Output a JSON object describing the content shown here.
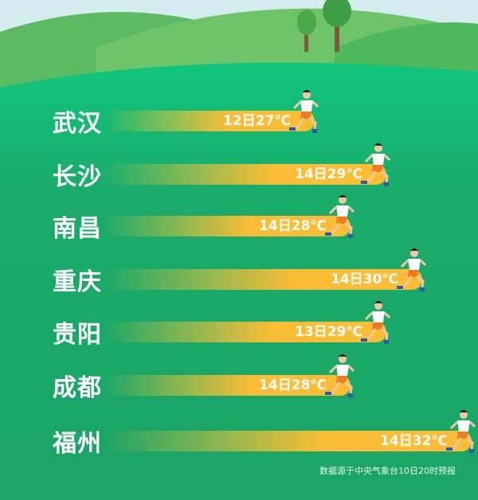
{
  "chart_data": {
    "type": "bar",
    "orientation": "horizontal",
    "categories": [
      "武汉",
      "长沙",
      "南昌",
      "重庆",
      "贵阳",
      "成都",
      "福州"
    ],
    "labels": [
      "12日27℃",
      "14日29℃",
      "14日28℃",
      "14日30℃",
      "13日29℃",
      "14日28℃",
      "14日32℃"
    ],
    "values": [
      27,
      29,
      28,
      30,
      29,
      28,
      32
    ],
    "unit": "℃",
    "xlim": [
      27,
      32
    ],
    "grid": false
  },
  "source": "数据源于中央气象台10日20时预报",
  "colors": {
    "background": "#1ba568",
    "bar": "#fbbd35",
    "text": "#ffffff"
  },
  "icons": {
    "bar_end": "runner-icon"
  }
}
